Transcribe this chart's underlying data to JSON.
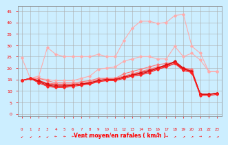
{
  "background_color": "#cceeff",
  "grid_color": "#aaaaaa",
  "xlabel": "Vent moyen/en rafales ( km/h )",
  "x_ticks": [
    0,
    1,
    2,
    3,
    4,
    5,
    6,
    7,
    8,
    9,
    10,
    11,
    12,
    13,
    14,
    15,
    16,
    17,
    18,
    19,
    20,
    21,
    22,
    23
  ],
  "y_ticks": [
    0,
    5,
    10,
    15,
    20,
    25,
    30,
    35,
    40,
    45
  ],
  "ylim": [
    -1,
    47
  ],
  "xlim": [
    -0.5,
    23.5
  ],
  "series": [
    {
      "color": "#ffaaaa",
      "linewidth": 0.8,
      "marker": "D",
      "markersize": 1.8,
      "data_y": [
        24.5,
        15.5,
        16.5,
        29.0,
        26.0,
        25.0,
        25.0,
        25.0,
        25.0,
        26.0,
        25.0,
        25.0,
        32.0,
        37.5,
        40.5,
        40.5,
        39.5,
        40.0,
        43.0,
        43.5,
        29.5,
        26.5,
        18.5,
        18.5
      ]
    },
    {
      "color": "#ffaaaa",
      "linewidth": 0.8,
      "marker": "D",
      "markersize": 1.8,
      "data_y": [
        14.5,
        15.5,
        15.5,
        15.0,
        14.5,
        14.5,
        14.5,
        15.5,
        16.5,
        19.5,
        20.0,
        20.5,
        23.0,
        24.0,
        25.0,
        25.0,
        24.0,
        24.0,
        29.5,
        25.0,
        26.5,
        23.5,
        18.5,
        18.5
      ]
    },
    {
      "color": "#ff7777",
      "linewidth": 0.8,
      "marker": "D",
      "markersize": 1.8,
      "data_y": [
        14.5,
        15.5,
        15.5,
        14.5,
        13.5,
        13.5,
        13.5,
        14.0,
        14.5,
        15.5,
        15.5,
        15.5,
        17.5,
        18.5,
        19.5,
        20.5,
        21.5,
        22.0,
        22.5,
        20.0,
        19.5,
        8.5,
        8.5,
        9.0
      ]
    },
    {
      "color": "#ff7777",
      "linewidth": 0.8,
      "marker": "D",
      "markersize": 1.8,
      "data_y": [
        14.5,
        15.5,
        14.5,
        13.5,
        13.0,
        13.0,
        13.0,
        13.5,
        14.0,
        15.0,
        15.5,
        15.5,
        16.5,
        17.5,
        18.5,
        19.5,
        20.5,
        21.0,
        22.0,
        19.5,
        19.0,
        8.5,
        8.5,
        9.0
      ]
    },
    {
      "color": "#dd1111",
      "linewidth": 1.0,
      "marker": "D",
      "markersize": 1.8,
      "data_y": [
        14.5,
        15.5,
        14.5,
        13.0,
        12.5,
        12.5,
        12.5,
        13.0,
        13.5,
        14.5,
        15.0,
        15.0,
        16.0,
        17.0,
        18.0,
        19.0,
        20.0,
        21.0,
        23.0,
        20.0,
        18.5,
        8.5,
        8.5,
        9.0
      ]
    },
    {
      "color": "#dd1111",
      "linewidth": 1.0,
      "marker": "D",
      "markersize": 1.8,
      "data_y": [
        14.5,
        15.5,
        14.0,
        12.5,
        12.0,
        12.0,
        12.5,
        13.0,
        13.5,
        14.5,
        15.0,
        15.0,
        16.0,
        17.0,
        17.5,
        18.5,
        20.0,
        21.5,
        22.5,
        19.5,
        18.5,
        8.5,
        8.5,
        9.0
      ]
    },
    {
      "color": "#ff2222",
      "linewidth": 0.9,
      "marker": "D",
      "markersize": 1.8,
      "data_y": [
        14.5,
        15.5,
        13.5,
        12.0,
        11.5,
        11.5,
        12.0,
        12.5,
        13.0,
        14.0,
        14.5,
        14.5,
        15.5,
        16.5,
        17.0,
        18.0,
        19.5,
        20.5,
        22.0,
        19.0,
        18.0,
        8.0,
        8.0,
        8.5
      ]
    }
  ],
  "wind_arrow_chars": [
    "↙",
    "↙",
    "↗",
    "↙",
    "←",
    "←",
    "←",
    "↗",
    "↑",
    "↑",
    "↑",
    "↑",
    "↑",
    "↑",
    "↑",
    "↑",
    "→",
    "→",
    "↗",
    "↗",
    "↗",
    "→",
    "↗",
    "↗"
  ]
}
